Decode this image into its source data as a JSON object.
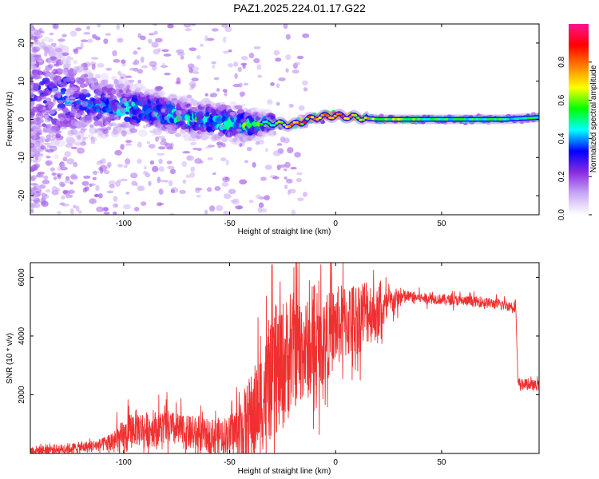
{
  "title": "PAZ1.2025.224.01.17.G22",
  "chart_data": [
    {
      "type": "heatmap",
      "xlabel": "Height of straight line (km)",
      "ylabel": "Frequency (Hz)",
      "xlim": [
        -144,
        96
      ],
      "ylim": [
        -25,
        25
      ],
      "xticks": [
        -100,
        -50,
        0,
        50
      ],
      "yticks": [
        -20,
        -10,
        0,
        10,
        20
      ],
      "colorbar": {
        "label": "Normalized spectral amplitude",
        "range": [
          0,
          1
        ],
        "ticks": [
          "0.0",
          "0.2",
          "0.4",
          "0.6",
          "0.8"
        ],
        "colormap": [
          "#ffffff",
          "#c9a8f5",
          "#8a2be2",
          "#0000ff",
          "#00ffff",
          "#00ff00",
          "#ffff00",
          "#ff8000",
          "#ff0000",
          "#ff1493"
        ]
      },
      "ridge": [
        {
          "x": -140,
          "f": 6.0,
          "spread": 9.0,
          "amp": 0.25
        },
        {
          "x": -130,
          "f": 6.0,
          "spread": 7.0,
          "amp": 0.3
        },
        {
          "x": -120,
          "f": 4.5,
          "spread": 5.0,
          "amp": 0.3
        },
        {
          "x": -110,
          "f": 3.5,
          "spread": 4.0,
          "amp": 0.32
        },
        {
          "x": -100,
          "f": 3.0,
          "spread": 3.5,
          "amp": 0.35
        },
        {
          "x": -90,
          "f": 2.5,
          "spread": 3.0,
          "amp": 0.38
        },
        {
          "x": -80,
          "f": 1.5,
          "spread": 2.5,
          "amp": 0.4
        },
        {
          "x": -70,
          "f": 0.5,
          "spread": 2.5,
          "amp": 0.4
        },
        {
          "x": -60,
          "f": 0.0,
          "spread": 2.5,
          "amp": 0.4
        },
        {
          "x": -50,
          "f": -1.0,
          "spread": 2.5,
          "amp": 0.42
        },
        {
          "x": -40,
          "f": -1.5,
          "spread": 2.0,
          "amp": 0.45
        },
        {
          "x": -30,
          "f": -1.0,
          "spread": 1.2,
          "amp": 0.55
        },
        {
          "x": -20,
          "f": -1.5,
          "spread": 1.0,
          "amp": 0.7
        },
        {
          "x": -10,
          "f": 0.5,
          "spread": 1.0,
          "amp": 0.75
        },
        {
          "x": 0,
          "f": 1.0,
          "spread": 0.9,
          "amp": 0.85
        },
        {
          "x": 10,
          "f": 0.5,
          "spread": 0.8,
          "amp": 0.7
        },
        {
          "x": 20,
          "f": 0.0,
          "spread": 0.7,
          "amp": 0.6
        },
        {
          "x": 40,
          "f": 0.0,
          "spread": 0.7,
          "amp": 0.55
        },
        {
          "x": 60,
          "f": 0.0,
          "spread": 0.7,
          "amp": 0.5
        },
        {
          "x": 80,
          "f": 0.0,
          "spread": 0.7,
          "amp": 0.5
        },
        {
          "x": 96,
          "f": 0.5,
          "spread": 0.7,
          "amp": 0.5
        }
      ]
    },
    {
      "type": "line",
      "xlabel": "Height of straight line (km)",
      "ylabel": "SNR (10 * v/v)",
      "xlim": [
        -144,
        96
      ],
      "ylim": [
        0,
        6500
      ],
      "xticks": [
        -100,
        -50,
        0,
        50
      ],
      "yticks": [
        2000,
        4000,
        6000
      ],
      "color": "#f03030",
      "series": [
        {
          "x": [
            -144,
            -130,
            -120,
            -110,
            -100,
            -95,
            -90,
            -80,
            -70,
            -60,
            -50,
            -45,
            -40,
            -35,
            -30,
            -25,
            -23,
            -20,
            -15,
            -10,
            -5,
            0,
            5,
            10,
            15,
            20,
            25,
            30,
            35,
            40,
            50,
            60,
            70,
            80,
            85,
            86,
            90,
            96
          ],
          "y": [
            100,
            150,
            200,
            300,
            500,
            900,
            800,
            900,
            700,
            600,
            650,
            800,
            1200,
            1800,
            2500,
            3000,
            3200,
            3500,
            3600,
            3400,
            3900,
            4300,
            4500,
            4600,
            4900,
            4700,
            5100,
            5300,
            5350,
            5300,
            5250,
            5200,
            5150,
            5050,
            5000,
            2400,
            2350,
            2300
          ]
        }
      ],
      "noise": [
        {
          "x": -144,
          "amp": 200
        },
        {
          "x": -110,
          "amp": 300
        },
        {
          "x": -100,
          "amp": 900
        },
        {
          "x": -60,
          "amp": 800
        },
        {
          "x": -50,
          "amp": 900
        },
        {
          "x": -40,
          "amp": 2200
        },
        {
          "x": -25,
          "amp": 3200
        },
        {
          "x": -10,
          "amp": 2200
        },
        {
          "x": 15,
          "amp": 1700
        },
        {
          "x": 25,
          "amp": 700
        },
        {
          "x": 35,
          "amp": 250
        },
        {
          "x": 96,
          "amp": 250
        }
      ]
    }
  ]
}
